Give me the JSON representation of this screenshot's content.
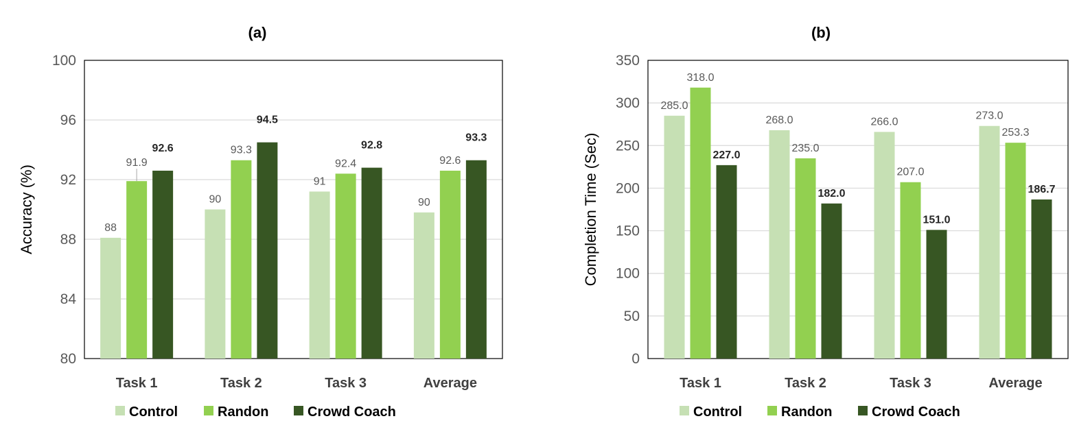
{
  "chart_data": [
    {
      "type": "bar",
      "title": "(a)",
      "xlabel": "",
      "ylabel": "Accuracy (%)",
      "ylim": [
        80,
        100
      ],
      "yticks": [
        "80",
        "84",
        "88",
        "92",
        "96",
        "100"
      ],
      "ytick_values": [
        80,
        84,
        88,
        92,
        96,
        100
      ],
      "grid": true,
      "legend_position": "bottom",
      "categories": [
        "Task 1",
        "Task 2",
        "Task 3",
        "Average"
      ],
      "series": [
        {
          "name": "Control",
          "values": [
            88.1,
            90.0,
            91.2,
            89.8
          ],
          "labels": [
            "88",
            "90",
            "91",
            "90"
          ],
          "bold": false,
          "color": "#c6e0b4"
        },
        {
          "name": "Randon",
          "values": [
            91.9,
            93.3,
            92.4,
            92.6
          ],
          "labels": [
            "91.9",
            "93.3",
            "92.4",
            "92.6"
          ],
          "bold": false,
          "color": "#92d050"
        },
        {
          "name": "Crowd Coach",
          "values": [
            92.6,
            94.5,
            92.8,
            93.3
          ],
          "labels": [
            "92.6",
            "94.5",
            "92.8",
            "93.3"
          ],
          "bold": true,
          "color": "#375623"
        }
      ]
    },
    {
      "type": "bar",
      "title": "(b)",
      "xlabel": "",
      "ylabel": "Completion Time (Sec)",
      "ylim": [
        0,
        350
      ],
      "yticks": [
        "0",
        "50",
        "100",
        "150",
        "200",
        "250",
        "300",
        "350"
      ],
      "ytick_values": [
        0,
        50,
        100,
        150,
        200,
        250,
        300,
        350
      ],
      "grid": true,
      "legend_position": "bottom",
      "categories": [
        "Task 1",
        "Task 2",
        "Task 3",
        "Average"
      ],
      "series": [
        {
          "name": "Control",
          "values": [
            285.0,
            268.0,
            266.0,
            273.0
          ],
          "labels": [
            "285.0",
            "268.0",
            "266.0",
            "273.0"
          ],
          "bold": false,
          "color": "#c6e0b4"
        },
        {
          "name": "Randon",
          "values": [
            318.0,
            235.0,
            207.0,
            253.3
          ],
          "labels": [
            "318.0",
            "235.0",
            "207.0",
            "253.3"
          ],
          "bold": false,
          "color": "#92d050"
        },
        {
          "name": "Crowd Coach",
          "values": [
            227.0,
            182.0,
            151.0,
            186.7
          ],
          "labels": [
            "227.0",
            "182.0",
            "151.0",
            "186.7"
          ],
          "bold": true,
          "color": "#375623"
        }
      ]
    }
  ]
}
